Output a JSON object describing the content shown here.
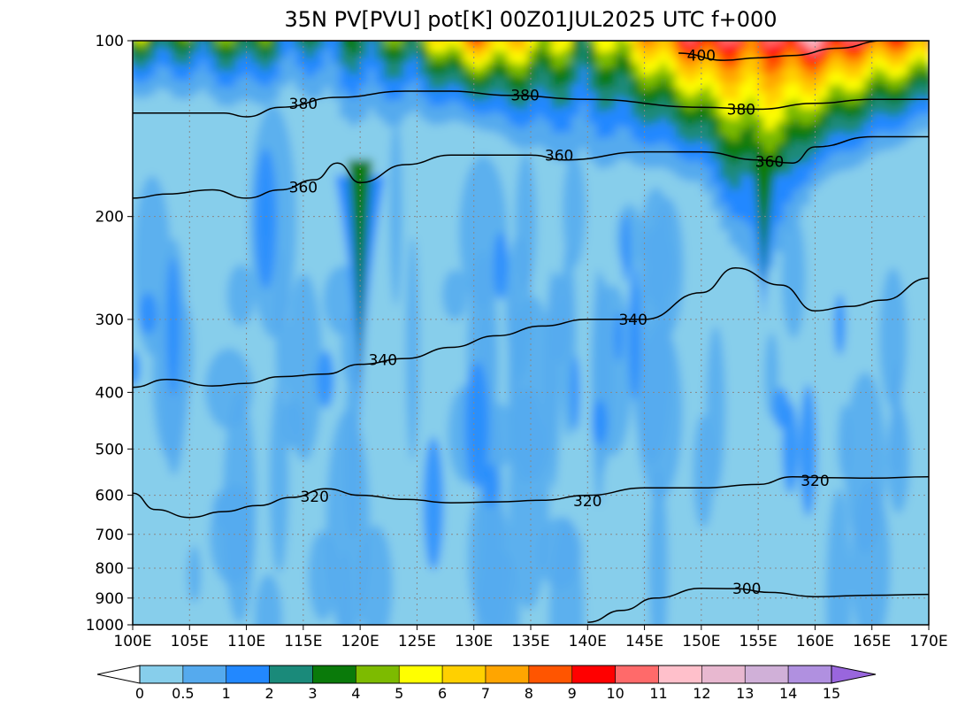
{
  "chart_data": {
    "type": "contour",
    "title": "35N PV[PVU] pot[K] 00Z01JUL2025 UTC f+000",
    "xlabel": "",
    "ylabel": "",
    "x_tick_labels": [
      "100E",
      "105E",
      "110E",
      "115E",
      "120E",
      "125E",
      "130E",
      "135E",
      "140E",
      "145E",
      "150E",
      "155E",
      "160E",
      "165E",
      "170E"
    ],
    "x_ticks": [
      100,
      105,
      110,
      115,
      120,
      125,
      130,
      135,
      140,
      145,
      150,
      155,
      160,
      165,
      170
    ],
    "xlim": [
      100,
      170
    ],
    "y_scale": "log",
    "y_inverted": true,
    "ylim": [
      1000,
      100
    ],
    "y_ticks": [
      100,
      200,
      300,
      400,
      500,
      600,
      700,
      800,
      900,
      1000
    ],
    "y_tick_labels": [
      "100",
      "200",
      "300",
      "400",
      "500",
      "600",
      "700",
      "800",
      "900",
      "1000"
    ],
    "grid": true,
    "pv_levels": [
      0,
      0.5,
      1,
      2,
      3,
      4,
      5,
      6,
      7,
      8,
      9,
      10,
      11,
      12,
      13,
      14,
      15
    ],
    "pv_level_labels": [
      "0",
      "0.5",
      "1",
      "2",
      "3",
      "4",
      "5",
      "6",
      "7",
      "8",
      "9",
      "10",
      "11",
      "12",
      "13",
      "14",
      "15"
    ],
    "pv_colors": [
      "#87ceeb",
      "#55aaee",
      "#2288ff",
      "#1a8a7a",
      "#0a7a0a",
      "#7dbb00",
      "#ffff00",
      "#ffd000",
      "#ffa500",
      "#ff5500",
      "#ff0000",
      "#ff6a6a",
      "#ffc0cb",
      "#e8b8d0",
      "#d0b0d8",
      "#b090e0"
    ],
    "pv_under_color": "#ffffff",
    "pv_over_color": "#9966dd",
    "pv_fields": [
      {
        "name": "upper",
        "x": [
          100,
          105,
          110,
          115,
          120,
          125,
          130,
          135,
          140,
          145,
          150,
          155,
          160,
          165,
          170
        ],
        "lower_p": [
          120,
          122,
          125,
          122,
          135,
          130,
          128,
          140,
          150,
          145,
          150,
          200,
          150,
          140,
          130
        ],
        "upper_values": [
          5,
          4,
          5,
          3,
          4,
          5,
          9,
          7,
          5,
          8,
          11,
          10,
          12,
          10,
          9
        ]
      },
      {
        "name": "tropopause_fold",
        "x": [
          120,
          155.5
        ],
        "bottom_p": [
          450,
          300
        ]
      }
    ],
    "isentropes": [
      {
        "label": "400",
        "x": [
          148,
          152,
          155,
          158,
          162,
          166,
          170
        ],
        "p": [
          105,
          108,
          107,
          106,
          103,
          100,
          100
        ]
      },
      {
        "label": "380",
        "x": [
          100,
          105,
          108,
          110,
          113,
          118,
          124,
          128,
          133,
          140,
          150,
          155,
          160,
          165,
          170
        ],
        "p": [
          133,
          133,
          133,
          135,
          130,
          125,
          122,
          122,
          124,
          126,
          130,
          131,
          128,
          126,
          126
        ]
      },
      {
        "label": "360",
        "x": [
          100,
          103,
          107,
          110,
          113,
          116,
          118,
          120,
          124,
          128,
          133,
          135,
          138,
          145,
          150,
          155,
          158,
          160,
          165,
          170
        ],
        "p": [
          186,
          183,
          180,
          186,
          180,
          173,
          162,
          175,
          163,
          157,
          157,
          157,
          160,
          155,
          155,
          160,
          162,
          152,
          146,
          146
        ]
      },
      {
        "label": "340",
        "x": [
          100,
          103,
          107,
          110,
          113,
          117,
          120,
          124,
          128,
          132,
          136,
          140,
          145,
          150,
          153,
          157,
          160,
          163,
          166,
          170
        ],
        "p": [
          392,
          380,
          390,
          386,
          376,
          372,
          358,
          350,
          335,
          320,
          308,
          300,
          300,
          270,
          245,
          262,
          290,
          285,
          278,
          255
        ]
      },
      {
        "label": "320",
        "x": [
          100,
          102,
          105,
          108,
          111,
          114,
          117,
          120,
          124,
          128,
          132,
          136,
          140,
          145,
          150,
          155,
          158,
          161,
          165,
          170
        ],
        "p": [
          595,
          635,
          655,
          640,
          625,
          605,
          585,
          600,
          610,
          618,
          616,
          612,
          600,
          583,
          583,
          575,
          558,
          560,
          561,
          558
        ]
      },
      {
        "label": "300",
        "x": [
          140,
          143,
          146,
          150,
          153,
          156,
          160,
          165,
          170
        ],
        "p": [
          990,
          945,
          900,
          866,
          867,
          880,
          895,
          890,
          887
        ]
      }
    ],
    "isentrope_labels": [
      {
        "text": "400",
        "x": 150,
        "p": 106
      },
      {
        "text": "380",
        "x": 115,
        "p": 128
      },
      {
        "text": "380",
        "x": 134.5,
        "p": 124
      },
      {
        "text": "380",
        "x": 153.5,
        "p": 131
      },
      {
        "text": "360",
        "x": 137.5,
        "p": 157
      },
      {
        "text": "360",
        "x": 115,
        "p": 178
      },
      {
        "text": "360",
        "x": 156,
        "p": 161
      },
      {
        "text": "340",
        "x": 144,
        "p": 300
      },
      {
        "text": "340",
        "x": 122,
        "p": 352
      },
      {
        "text": "320",
        "x": 116,
        "p": 603
      },
      {
        "text": "320",
        "x": 140,
        "p": 614
      },
      {
        "text": "320",
        "x": 160,
        "p": 566
      },
      {
        "text": "300",
        "x": 154,
        "p": 866
      }
    ]
  }
}
